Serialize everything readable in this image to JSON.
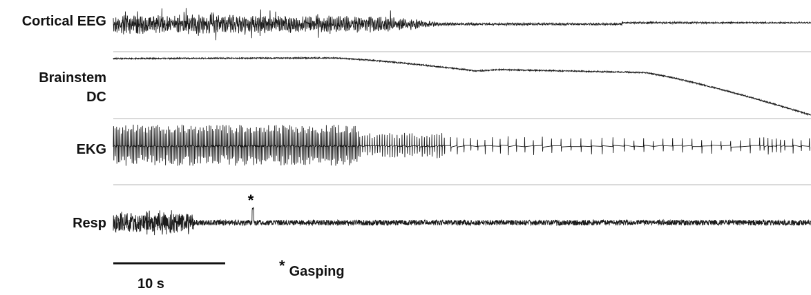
{
  "chart_data": {
    "type": "line",
    "description_free": true,
    "traces": [
      {
        "label": "Cortical EEG",
        "style": "eeg_decay"
      },
      {
        "label": "Brainstem DC",
        "style": "dc_drift"
      },
      {
        "label": "EKG",
        "style": "ekg_bradycardia"
      },
      {
        "label": "Resp",
        "style": "resp_gasp"
      }
    ],
    "scale_bar": {
      "label": "10 s",
      "seconds": 10
    },
    "annotation": {
      "marker": "*",
      "label": "Gasping"
    }
  },
  "labels": {
    "trace1": "Cortical EEG",
    "trace2a": "Brainstem",
    "trace2b": "DC",
    "trace3": "EKG",
    "trace4": "Resp",
    "scale": "10 s",
    "gasp_marker": "*",
    "legend_marker": "*",
    "legend_text": "Gasping"
  },
  "colors": {
    "trace": "#1a1a1a",
    "separator": "#b5b5b5"
  }
}
